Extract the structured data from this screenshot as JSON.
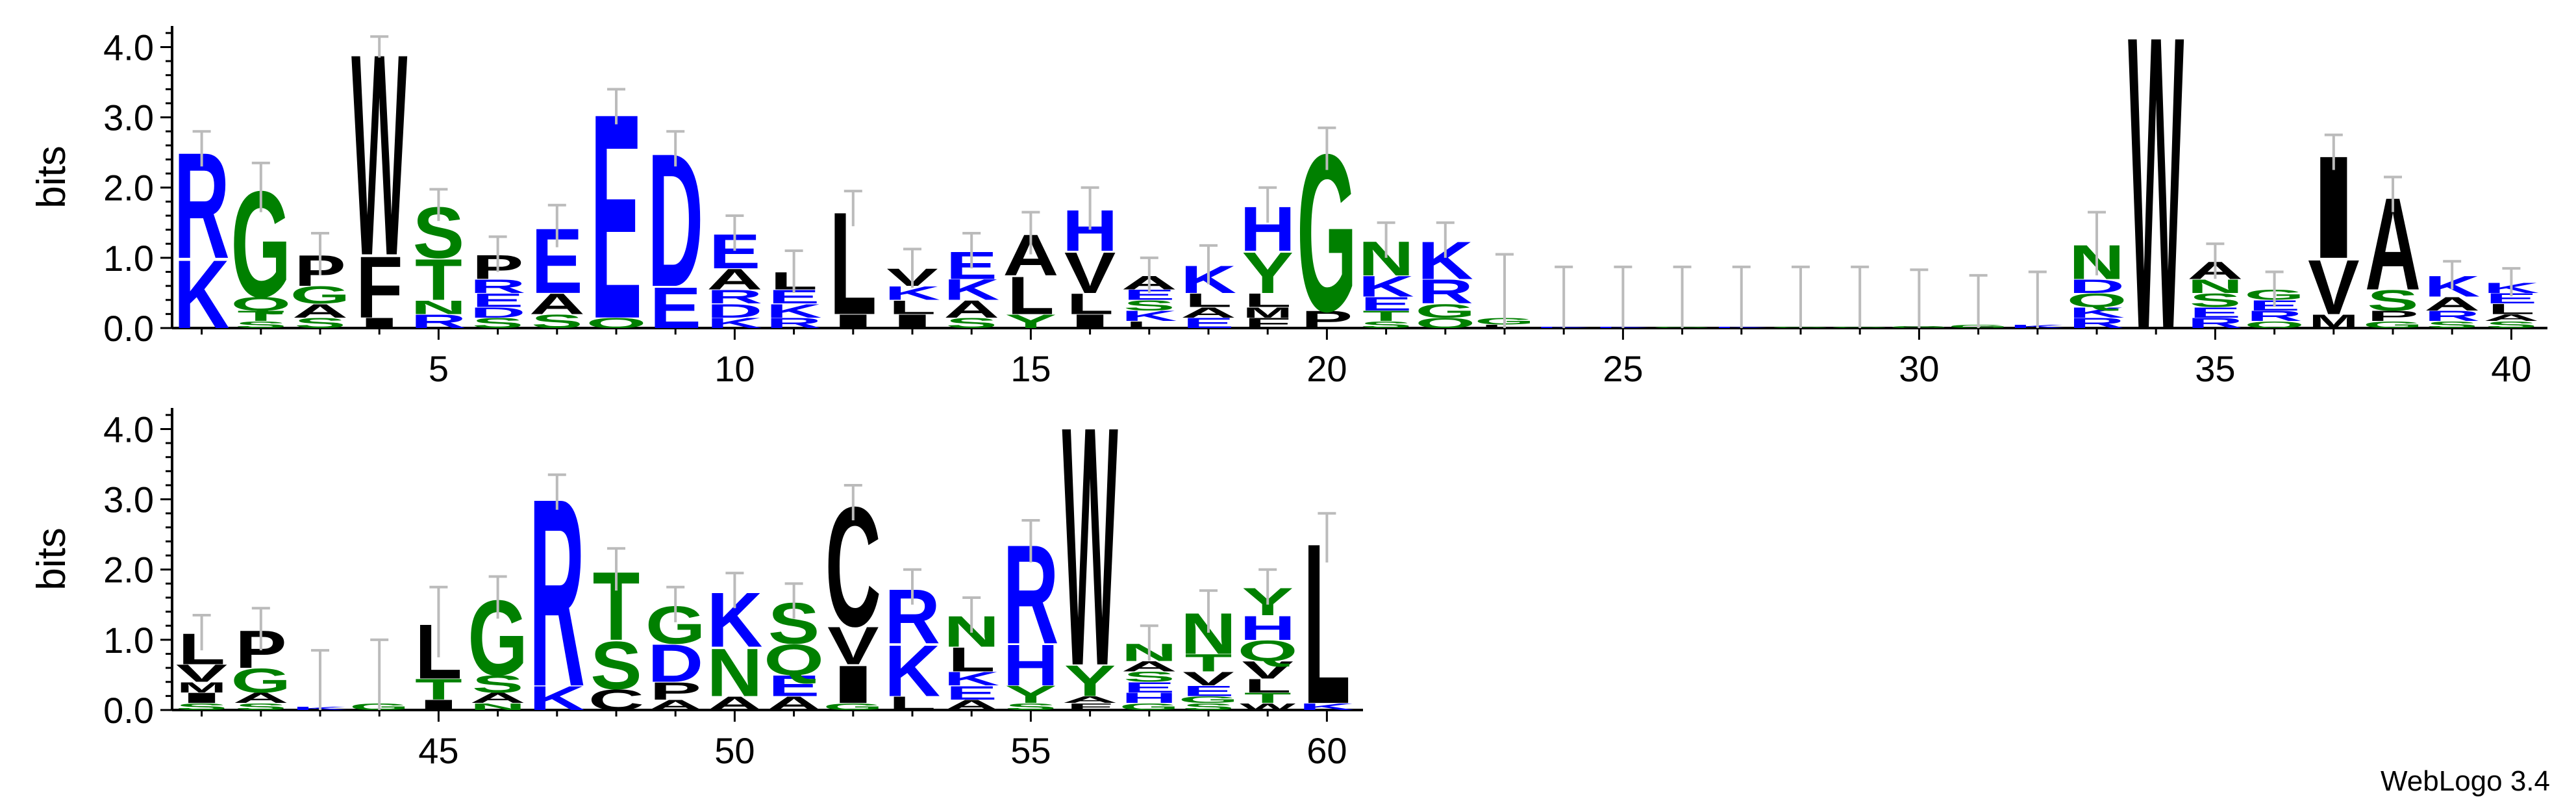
{
  "footer_text": "WebLogo 3.4",
  "colors": {
    "hydrophobic": "#000000",
    "polar": "#008000",
    "charged": "#0000ff",
    "errorbar": "#bbbbbb"
  },
  "chart_data": {
    "type": "sequence-logo",
    "ylabel": "bits",
    "ylim": [
      0,
      4.3
    ],
    "yticks": [
      0.0,
      1.0,
      2.0,
      3.0,
      4.0
    ],
    "panels": [
      {
        "xrange": [
          1,
          40
        ],
        "xticks": [
          5,
          10,
          15,
          20,
          25,
          30,
          35,
          40
        ]
      },
      {
        "xrange": [
          41,
          60
        ],
        "xticks": [
          45,
          50,
          55,
          60
        ]
      }
    ],
    "positions": [
      {
        "pos": 1,
        "err": 0.5,
        "letters": [
          [
            "R",
            1.55
          ],
          [
            "K",
            1.0
          ]
        ]
      },
      {
        "pos": 2,
        "err": 0.7,
        "letters": [
          [
            "G",
            1.55
          ],
          [
            "Q",
            0.2
          ],
          [
            "T",
            0.15
          ],
          [
            "S",
            0.1
          ]
        ]
      },
      {
        "pos": 3,
        "err": 0.6,
        "letters": [
          [
            "P",
            0.45
          ],
          [
            "G",
            0.25
          ],
          [
            "A",
            0.2
          ],
          [
            "S",
            0.15
          ]
        ]
      },
      {
        "pos": 4,
        "err": 0.3,
        "letters": [
          [
            "W",
            2.95
          ],
          [
            "F",
            0.9
          ],
          [
            "I",
            0.15
          ]
        ]
      },
      {
        "pos": 5,
        "err": 0.45,
        "letters": [
          [
            "T",
            0.6
          ],
          [
            "S",
            0.75
          ],
          [
            "R",
            0.2
          ],
          [
            "N",
            0.2
          ]
        ]
      },
      {
        "pos": 6,
        "err": 0.5,
        "letters": [
          [
            "P",
            0.35
          ],
          [
            "E",
            0.2
          ],
          [
            "R",
            0.2
          ],
          [
            "S",
            0.15
          ],
          [
            "D",
            0.15
          ]
        ]
      },
      {
        "pos": 7,
        "err": 0.6,
        "letters": [
          [
            "E",
            0.95
          ],
          [
            "A",
            0.3
          ],
          [
            "S",
            0.2
          ]
        ]
      },
      {
        "pos": 8,
        "err": 0.5,
        "letters": [
          [
            "E",
            3.0
          ],
          [
            "Q",
            0.15
          ]
        ]
      },
      {
        "pos": 9,
        "err": 0.5,
        "letters": [
          [
            "D",
            1.95
          ],
          [
            "E",
            0.6
          ]
        ]
      },
      {
        "pos": 10,
        "err": 0.5,
        "letters": [
          [
            "E",
            0.5
          ],
          [
            "A",
            0.3
          ],
          [
            "D",
            0.2
          ],
          [
            "R",
            0.2
          ],
          [
            "K",
            0.15
          ]
        ]
      },
      {
        "pos": 11,
        "err": 0.6,
        "letters": [
          [
            "L",
            0.25
          ],
          [
            "K",
            0.2
          ],
          [
            "E",
            0.2
          ],
          [
            "R",
            0.15
          ]
        ]
      },
      {
        "pos": 12,
        "err": 0.5,
        "letters": [
          [
            "L",
            1.5
          ],
          [
            "I",
            0.2
          ]
        ]
      },
      {
        "pos": 13,
        "err": 0.55,
        "letters": [
          [
            "I",
            0.2
          ],
          [
            "L",
            0.2
          ],
          [
            "V",
            0.25
          ],
          [
            "K",
            0.2
          ]
        ]
      },
      {
        "pos": 14,
        "err": 0.5,
        "letters": [
          [
            "E",
            0.4
          ],
          [
            "K",
            0.3
          ],
          [
            "A",
            0.25
          ],
          [
            "S",
            0.15
          ]
        ]
      },
      {
        "pos": 15,
        "err": 0.6,
        "letters": [
          [
            "L",
            0.55
          ],
          [
            "A",
            0.6
          ],
          [
            "Y",
            0.2
          ]
        ]
      },
      {
        "pos": 16,
        "err": 0.6,
        "letters": [
          [
            "V",
            0.6
          ],
          [
            "H",
            0.6
          ],
          [
            "L",
            0.3
          ],
          [
            "I",
            0.2
          ]
        ]
      },
      {
        "pos": 17,
        "err": 0.5,
        "letters": [
          [
            "A",
            0.2
          ],
          [
            "K",
            0.15
          ],
          [
            "S",
            0.15
          ],
          [
            "E",
            0.15
          ],
          [
            "L",
            0.1
          ]
        ]
      },
      {
        "pos": 18,
        "err": 0.55,
        "letters": [
          [
            "K",
            0.4
          ],
          [
            "L",
            0.2
          ],
          [
            "E",
            0.15
          ],
          [
            "A",
            0.15
          ]
        ]
      },
      {
        "pos": 19,
        "err": 0.5,
        "letters": [
          [
            "H",
            0.65
          ],
          [
            "Y",
            0.6
          ],
          [
            "L",
            0.2
          ],
          [
            "F",
            0.15
          ],
          [
            "M",
            0.15
          ]
        ]
      },
      {
        "pos": 20,
        "err": 0.6,
        "letters": [
          [
            "G",
            2.3
          ],
          [
            "P",
            0.25
          ]
        ]
      },
      {
        "pos": 21,
        "err": 0.5,
        "letters": [
          [
            "N",
            0.5
          ],
          [
            "K",
            0.3
          ],
          [
            "E",
            0.2
          ],
          [
            "T",
            0.15
          ],
          [
            "S",
            0.1
          ]
        ]
      },
      {
        "pos": 22,
        "err": 0.5,
        "letters": [
          [
            "K",
            0.55
          ],
          [
            "R",
            0.35
          ],
          [
            "G",
            0.2
          ],
          [
            "Q",
            0.15
          ]
        ]
      },
      {
        "pos": 23,
        "err": 1.8,
        "letters": [
          [
            "G",
            0.1
          ],
          [
            "L",
            0.05
          ]
        ]
      },
      {
        "pos": 24,
        "err": 1.7,
        "letters": [
          [
            "K",
            0.02
          ]
        ]
      },
      {
        "pos": 25,
        "err": 1.7,
        "letters": [
          [
            "K",
            0.02
          ]
        ]
      },
      {
        "pos": 26,
        "err": 1.7,
        "letters": [
          [
            "G",
            0.02
          ]
        ]
      },
      {
        "pos": 27,
        "err": 1.7,
        "letters": [
          [
            "K",
            0.02
          ]
        ]
      },
      {
        "pos": 28,
        "err": 1.7,
        "letters": [
          [
            "G",
            0.02
          ]
        ]
      },
      {
        "pos": 29,
        "err": 1.7,
        "letters": [
          [
            "G",
            0.02
          ]
        ]
      },
      {
        "pos": 30,
        "err": 1.6,
        "letters": [
          [
            "G",
            0.03
          ]
        ]
      },
      {
        "pos": 31,
        "err": 1.4,
        "letters": [
          [
            "G",
            0.05
          ]
        ]
      },
      {
        "pos": 32,
        "err": 1.5,
        "letters": [
          [
            "K",
            0.05
          ]
        ]
      },
      {
        "pos": 33,
        "err": 0.9,
        "letters": [
          [
            "N",
            0.5
          ],
          [
            "Q",
            0.2
          ],
          [
            "D",
            0.2
          ],
          [
            "R",
            0.15
          ],
          [
            "K",
            0.15
          ]
        ]
      },
      {
        "pos": 34,
        "err": 0.0,
        "letters": [
          [
            "W",
            4.3
          ]
        ]
      },
      {
        "pos": 35,
        "err": 0.5,
        "letters": [
          [
            "A",
            0.25
          ],
          [
            "S",
            0.2
          ],
          [
            "N",
            0.2
          ],
          [
            "R",
            0.15
          ],
          [
            "E",
            0.15
          ]
        ]
      },
      {
        "pos": 36,
        "err": 0.5,
        "letters": [
          [
            "R",
            0.15
          ],
          [
            "E",
            0.15
          ],
          [
            "G",
            0.15
          ],
          [
            "Q",
            0.1
          ]
        ]
      },
      {
        "pos": 37,
        "err": 0.5,
        "letters": [
          [
            "I",
            1.5
          ],
          [
            "V",
            0.8
          ],
          [
            "M",
            0.2
          ]
        ]
      },
      {
        "pos": 38,
        "err": 0.5,
        "letters": [
          [
            "A",
            1.35
          ],
          [
            "S",
            0.3
          ],
          [
            "P",
            0.15
          ],
          [
            "G",
            0.1
          ]
        ]
      },
      {
        "pos": 39,
        "err": 0.4,
        "letters": [
          [
            "K",
            0.3
          ],
          [
            "A",
            0.2
          ],
          [
            "R",
            0.15
          ],
          [
            "S",
            0.1
          ]
        ]
      },
      {
        "pos": 40,
        "err": 0.4,
        "letters": [
          [
            "L",
            0.15
          ],
          [
            "E",
            0.15
          ],
          [
            "K",
            0.15
          ],
          [
            "S",
            0.1
          ],
          [
            "A",
            0.1
          ]
        ]
      },
      {
        "pos": 41,
        "err": 0.5,
        "letters": [
          [
            "L",
            0.45
          ],
          [
            "V",
            0.25
          ],
          [
            "I",
            0.15
          ],
          [
            "M",
            0.15
          ],
          [
            "S",
            0.1
          ]
        ]
      },
      {
        "pos": 42,
        "err": 0.6,
        "letters": [
          [
            "P",
            0.55
          ],
          [
            "G",
            0.35
          ],
          [
            "A",
            0.15
          ],
          [
            "S",
            0.1
          ]
        ]
      },
      {
        "pos": 43,
        "err": 1.6,
        "letters": [
          [
            "K",
            0.05
          ]
        ]
      },
      {
        "pos": 44,
        "err": 1.8,
        "letters": [
          [
            "G",
            0.1
          ]
        ]
      },
      {
        "pos": 45,
        "err": 1.0,
        "letters": [
          [
            "L",
            0.8
          ],
          [
            "T",
            0.3
          ],
          [
            "I",
            0.15
          ]
        ]
      },
      {
        "pos": 46,
        "err": 0.6,
        "letters": [
          [
            "G",
            1.1
          ],
          [
            "S",
            0.25
          ],
          [
            "A",
            0.15
          ],
          [
            "N",
            0.1
          ]
        ]
      },
      {
        "pos": 47,
        "err": 0.5,
        "letters": [
          [
            "R",
            2.75
          ],
          [
            "K",
            0.35
          ]
        ]
      },
      {
        "pos": 48,
        "err": 0.6,
        "letters": [
          [
            "T",
            1.0
          ],
          [
            "S",
            0.7
          ],
          [
            "C",
            0.3
          ]
        ]
      },
      {
        "pos": 49,
        "err": 0.5,
        "letters": [
          [
            "D",
            0.55
          ],
          [
            "G",
            0.55
          ],
          [
            "P",
            0.25
          ],
          [
            "A",
            0.15
          ]
        ]
      },
      {
        "pos": 50,
        "err": 0.5,
        "letters": [
          [
            "K",
            0.8
          ],
          [
            "N",
            0.7
          ],
          [
            "A",
            0.2
          ]
        ]
      },
      {
        "pos": 51,
        "err": 0.5,
        "letters": [
          [
            "S",
            0.6
          ],
          [
            "Q",
            0.45
          ],
          [
            "E",
            0.3
          ],
          [
            "A",
            0.2
          ]
        ]
      },
      {
        "pos": 52,
        "err": 0.5,
        "letters": [
          [
            "C",
            1.75
          ],
          [
            "I",
            0.55
          ],
          [
            "V",
            0.55
          ],
          [
            "G",
            0.1
          ]
        ]
      },
      {
        "pos": 53,
        "err": 0.5,
        "letters": [
          [
            "K",
            0.75
          ],
          [
            "R",
            0.8
          ],
          [
            "L",
            0.2
          ]
        ]
      },
      {
        "pos": 54,
        "err": 0.5,
        "letters": [
          [
            "N",
            0.45
          ],
          [
            "L",
            0.35
          ],
          [
            "E",
            0.2
          ],
          [
            "K",
            0.2
          ],
          [
            "A",
            0.15
          ]
        ]
      },
      {
        "pos": 55,
        "err": 0.6,
        "letters": [
          [
            "R",
            1.45
          ],
          [
            "H",
            0.6
          ],
          [
            "Y",
            0.25
          ],
          [
            "S",
            0.1
          ]
        ]
      },
      {
        "pos": 56,
        "err": 0.0,
        "letters": [
          [
            "W",
            3.5
          ],
          [
            "Y",
            0.45
          ],
          [
            "F",
            0.1
          ],
          [
            "A",
            0.1
          ]
        ]
      },
      {
        "pos": 57,
        "err": 0.5,
        "letters": [
          [
            "N",
            0.25
          ],
          [
            "H",
            0.15
          ],
          [
            "E",
            0.15
          ],
          [
            "S",
            0.15
          ],
          [
            "A",
            0.15
          ],
          [
            "G",
            0.1
          ]
        ]
      },
      {
        "pos": 58,
        "err": 0.6,
        "letters": [
          [
            "N",
            0.6
          ],
          [
            "T",
            0.25
          ],
          [
            "V",
            0.2
          ],
          [
            "E",
            0.15
          ],
          [
            "S",
            0.1
          ],
          [
            "G",
            0.1
          ]
        ]
      },
      {
        "pos": 59,
        "err": 0.5,
        "letters": [
          [
            "Y",
            0.4
          ],
          [
            "H",
            0.35
          ],
          [
            "Q",
            0.3
          ],
          [
            "V",
            0.25
          ],
          [
            "L",
            0.2
          ],
          [
            "T",
            0.15
          ],
          [
            "W",
            0.1
          ]
        ]
      },
      {
        "pos": 60,
        "err": 0.7,
        "letters": [
          [
            "L",
            2.35
          ],
          [
            "K",
            0.1
          ]
        ]
      }
    ]
  }
}
